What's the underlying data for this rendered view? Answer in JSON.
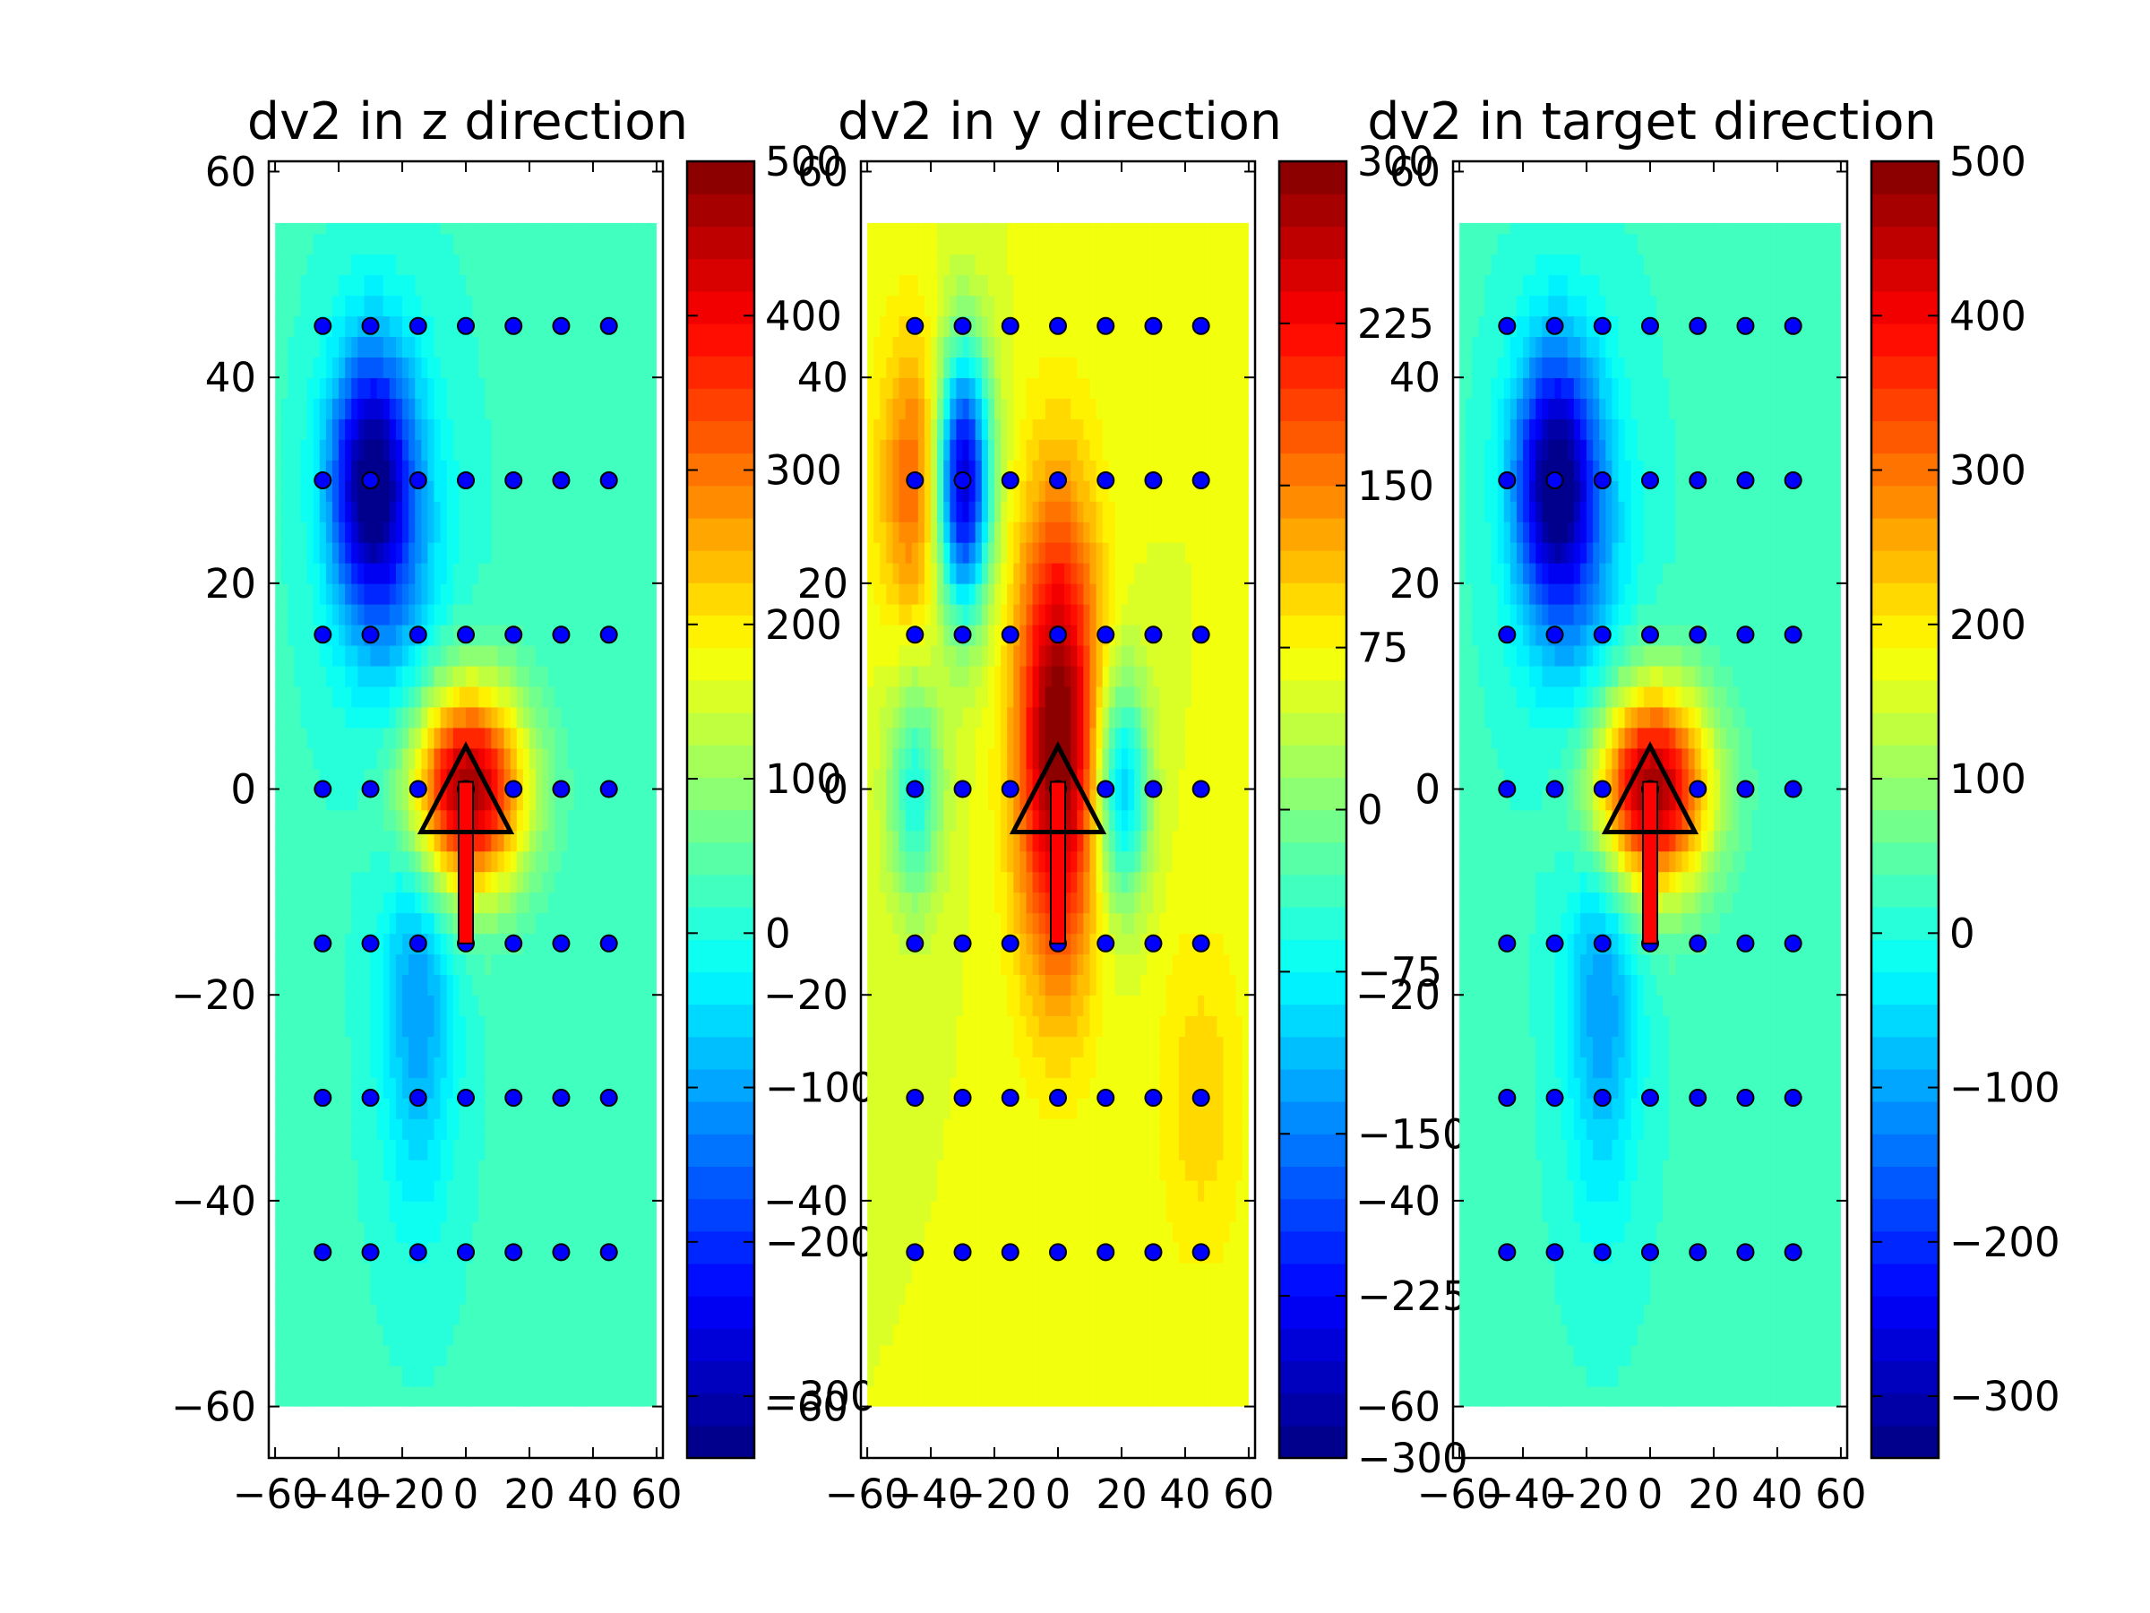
{
  "chart_data": [
    {
      "type": "contourf",
      "title": "dv2 in z direction",
      "xlabel": "",
      "ylabel": "",
      "xlim": [
        -62,
        62
      ],
      "ylim": [
        -65,
        61
      ],
      "xticks": [
        "-60",
        "-40",
        "-20",
        "0",
        "20",
        "40",
        "60"
      ],
      "yticks": [
        "60",
        "40",
        "20",
        "0",
        "-20",
        "-40",
        "-60"
      ],
      "colorbar": {
        "min": -340,
        "max": 500,
        "ticks": [
          "500",
          "400",
          "300",
          "200",
          "100",
          "0",
          "-100",
          "-200",
          "-300"
        ]
      },
      "field": {
        "background": 20,
        "blobs": [
          {
            "x": 0,
            "y": 0,
            "sx": 13,
            "sy": 7,
            "amp": 470
          },
          {
            "x": -30,
            "y": 30,
            "sx": 9,
            "sy": 9,
            "amp": -330
          },
          {
            "x": -15,
            "y": -20,
            "sx": 8,
            "sy": 14,
            "amp": -130
          },
          {
            "x": -22,
            "y": 22,
            "sx": 12,
            "sy": 14,
            "amp": -90
          }
        ]
      },
      "stations_x": [
        -45,
        -30,
        -15,
        0,
        15,
        30,
        45
      ],
      "stations_y": [
        45,
        30,
        15,
        0,
        -15,
        -30,
        -45
      ],
      "source": {
        "x": 0,
        "y": 0
      },
      "arrow": {
        "dx": 0,
        "dy": -15
      }
    },
    {
      "type": "contourf",
      "title": "dv2 in y direction",
      "xlabel": "",
      "ylabel": "",
      "xlim": [
        -62,
        62
      ],
      "ylim": [
        -65,
        61
      ],
      "xticks": [
        "-60",
        "-40",
        "-20",
        "0",
        "20",
        "40",
        "60"
      ],
      "yticks": [
        "60",
        "40",
        "20",
        "0",
        "-20",
        "-40",
        "-60"
      ],
      "colorbar": {
        "min": -300,
        "max": 300,
        "ticks": [
          "300",
          "225",
          "150",
          "75",
          "0",
          "-75",
          "-150",
          "-225",
          "-300"
        ]
      },
      "field": {
        "background": 60,
        "blobs": [
          {
            "x": 0,
            "y": 5,
            "sx": 9,
            "sy": 16,
            "amp": 250
          },
          {
            "x": -30,
            "y": 30,
            "sx": 6,
            "sy": 9,
            "amp": -330
          },
          {
            "x": 20,
            "y": 0,
            "sx": 6,
            "sy": 8,
            "amp": -170
          },
          {
            "x": -45,
            "y": 0,
            "sx": 6,
            "sy": 8,
            "amp": -120
          },
          {
            "x": -45,
            "y": 30,
            "sx": 8,
            "sy": 10,
            "amp": 110
          },
          {
            "x": 45,
            "y": -30,
            "sx": 10,
            "sy": 12,
            "amp": 40
          }
        ]
      },
      "stations_x": [
        -45,
        -30,
        -15,
        0,
        15,
        30,
        45
      ],
      "stations_y": [
        45,
        30,
        15,
        0,
        -15,
        -30,
        -45
      ],
      "source": {
        "x": 0,
        "y": 0
      },
      "arrow": {
        "dx": 0,
        "dy": -15
      }
    },
    {
      "type": "contourf",
      "title": "dv2 in target direction",
      "xlabel": "",
      "ylabel": "",
      "xlim": [
        -62,
        62
      ],
      "ylim": [
        -65,
        61
      ],
      "xticks": [
        "-60",
        "-40",
        "-20",
        "0",
        "20",
        "40",
        "60"
      ],
      "yticks": [
        "60",
        "40",
        "20",
        "0",
        "-20",
        "-40",
        "-60"
      ],
      "colorbar": {
        "min": -340,
        "max": 500,
        "ticks": [
          "500",
          "400",
          "300",
          "200",
          "100",
          "0",
          "-100",
          "-200",
          "-300"
        ]
      },
      "field": {
        "background": 20,
        "blobs": [
          {
            "x": 0,
            "y": 0,
            "sx": 13,
            "sy": 7,
            "amp": 470
          },
          {
            "x": -30,
            "y": 30,
            "sx": 9,
            "sy": 9,
            "amp": -330
          },
          {
            "x": -15,
            "y": -20,
            "sx": 8,
            "sy": 14,
            "amp": -130
          },
          {
            "x": -22,
            "y": 22,
            "sx": 12,
            "sy": 14,
            "amp": -90
          }
        ]
      },
      "stations_x": [
        -45,
        -30,
        -15,
        0,
        15,
        30,
        45
      ],
      "stations_y": [
        45,
        30,
        15,
        0,
        -15,
        -30,
        -45
      ],
      "source": {
        "x": 0,
        "y": 0
      },
      "arrow": {
        "dx": 0,
        "dy": -15
      }
    }
  ]
}
